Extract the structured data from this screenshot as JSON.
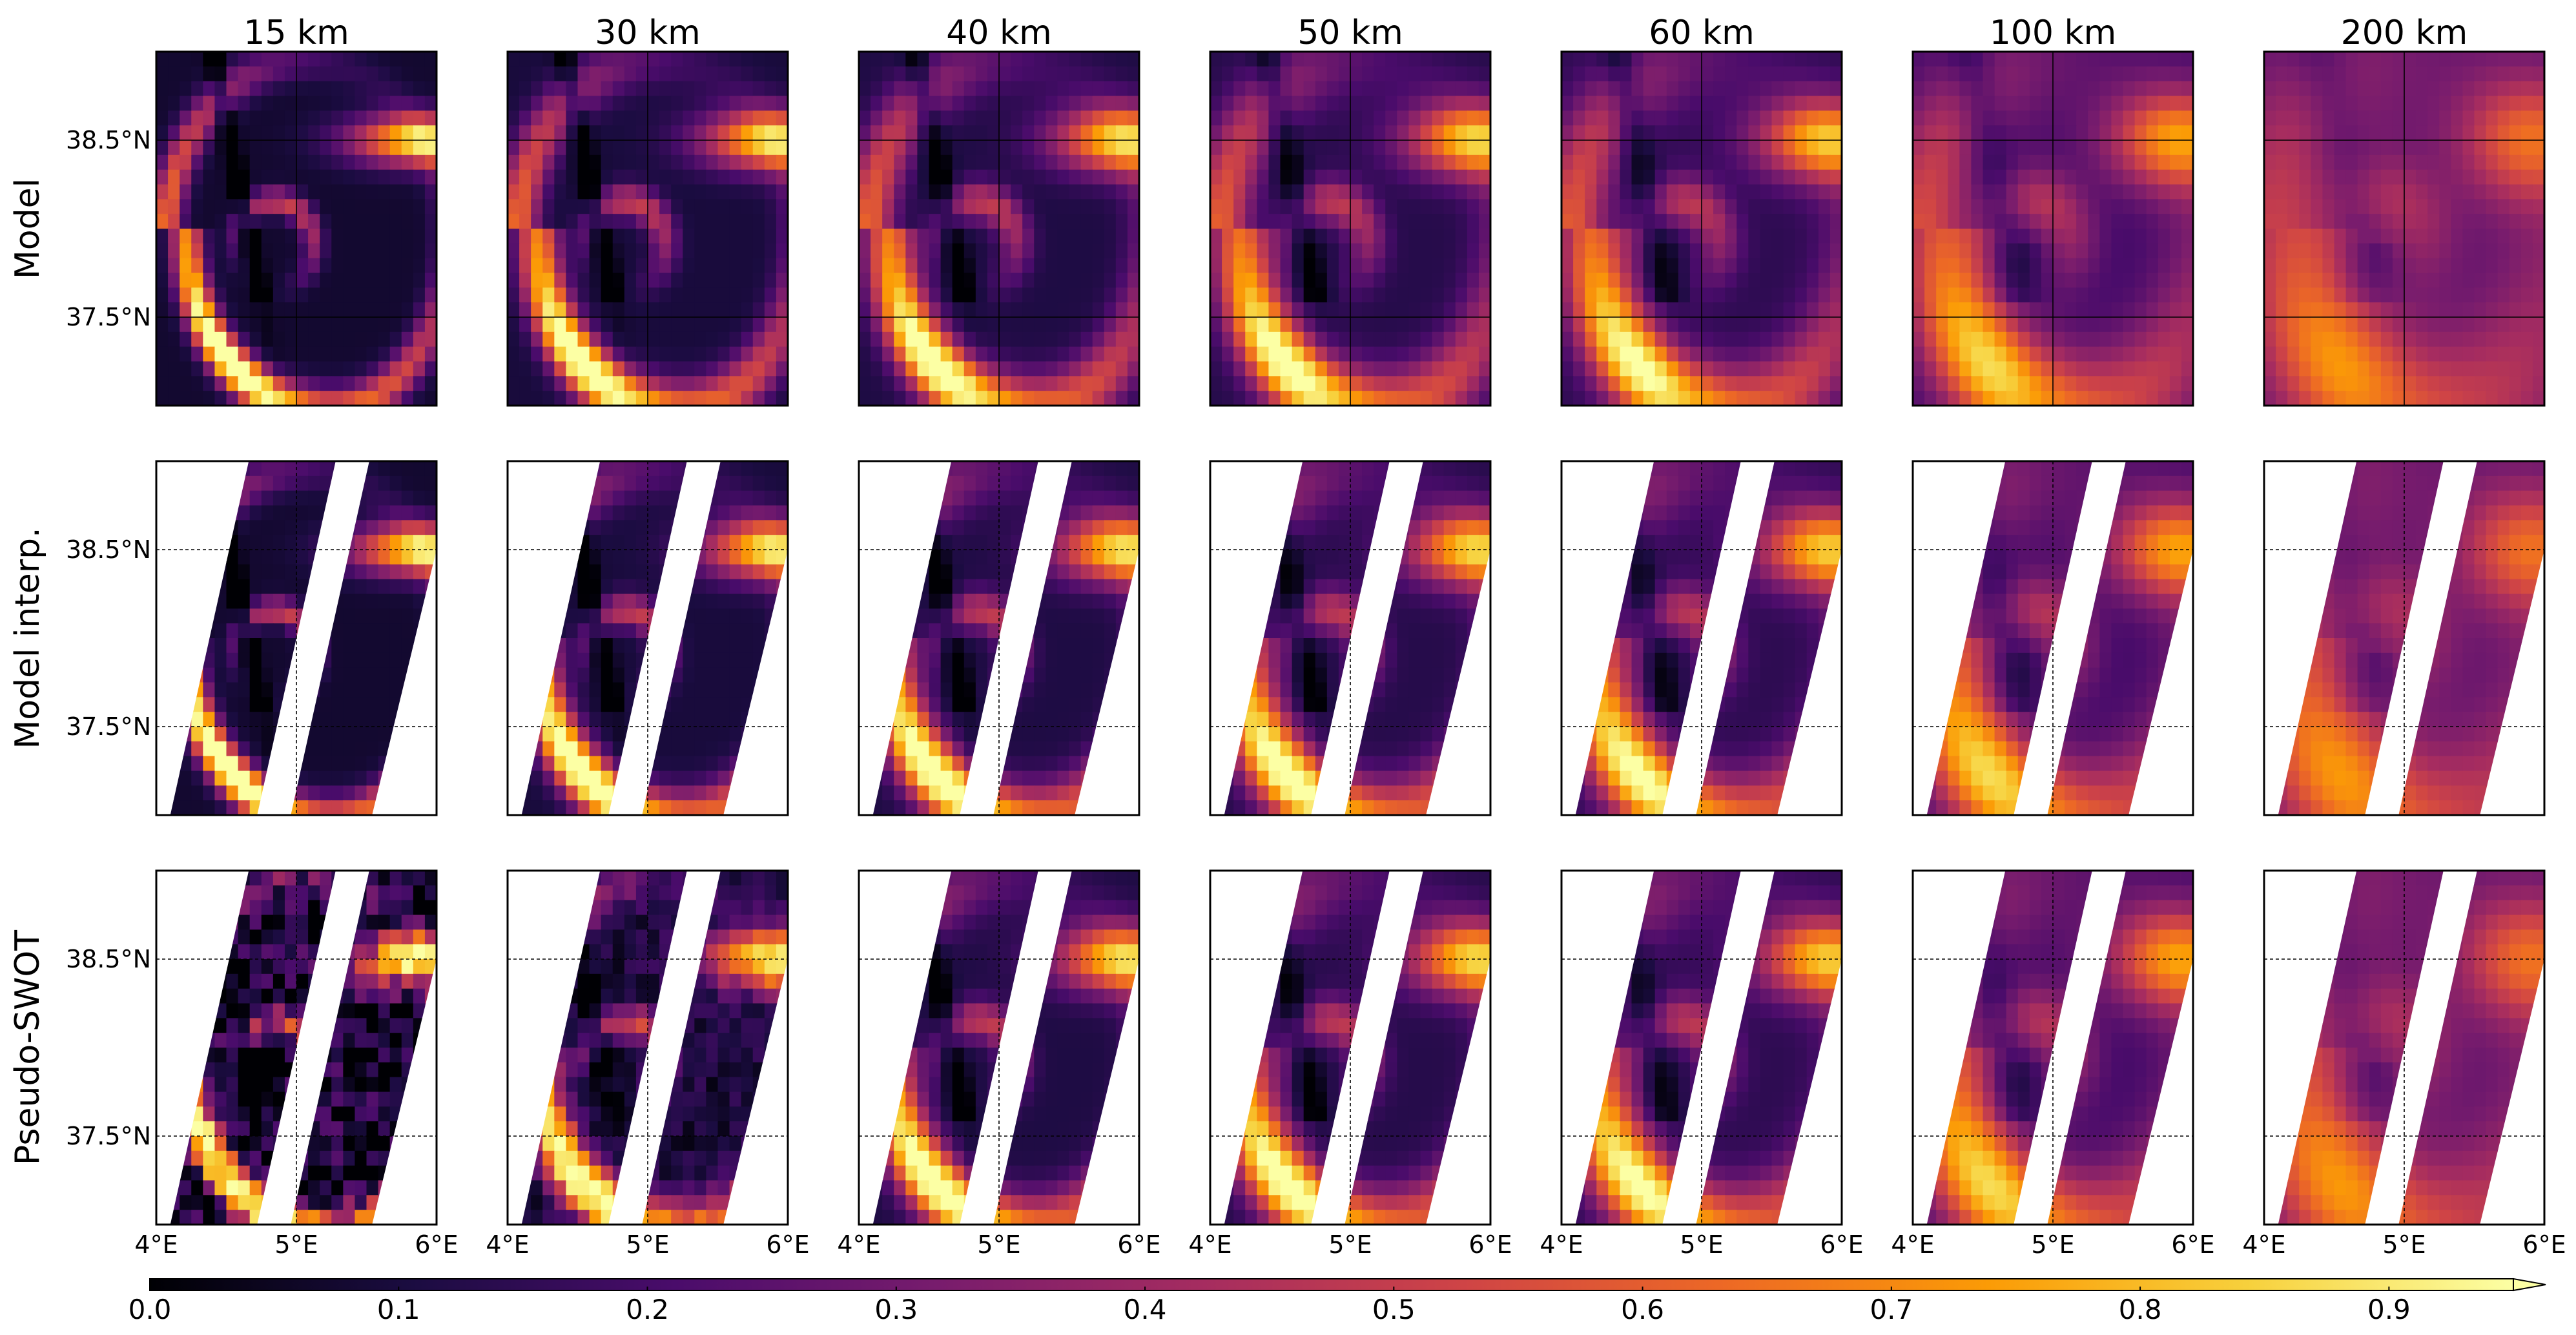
{
  "figure": {
    "columns": [
      "15 km",
      "30 km",
      "40 km",
      "50 km",
      "60 km",
      "100 km",
      "200 km"
    ],
    "rows": [
      "Model",
      "Model interp.",
      "Pseudo-SWOT"
    ],
    "lat_ticks": [
      "38.5°N",
      "37.5°N"
    ],
    "lon_ticks": [
      "4°E",
      "5°E",
      "6°E"
    ]
  },
  "colorbar": {
    "colormap": "inferno",
    "ticks": [
      "0.0",
      "0.1",
      "0.2",
      "0.3",
      "0.4",
      "0.5",
      "0.6",
      "0.7",
      "0.8",
      "0.9"
    ],
    "extend": "max"
  },
  "chart_data": {
    "type": "heatmap",
    "description_source": "grid of 7 filter scales x 3 data rows",
    "x": {
      "label": "",
      "ticks": [
        "4°E",
        "5°E",
        "6°E"
      ],
      "range": [
        4,
        6
      ]
    },
    "y": {
      "label": "",
      "ticks": [
        "37.5°N",
        "38.5°N"
      ],
      "range": [
        37.0,
        39.0
      ]
    },
    "columns": [
      "15 km",
      "30 km",
      "40 km",
      "50 km",
      "60 km",
      "100 km",
      "200 km"
    ],
    "rows": [
      "Model",
      "Model interp.",
      "Pseudo-SWOT"
    ],
    "color_range": [
      0.0,
      0.95
    ],
    "colors": {
      "inferno": [
        "#000004",
        "#1b0c41",
        "#4a0c6b",
        "#781c6d",
        "#a52c60",
        "#cf4446",
        "#ed6925",
        "#fb9b06",
        "#f7d13d",
        "#fcffa4"
      ],
      "frame": "#000000",
      "background": "#ffffff"
    }
  }
}
